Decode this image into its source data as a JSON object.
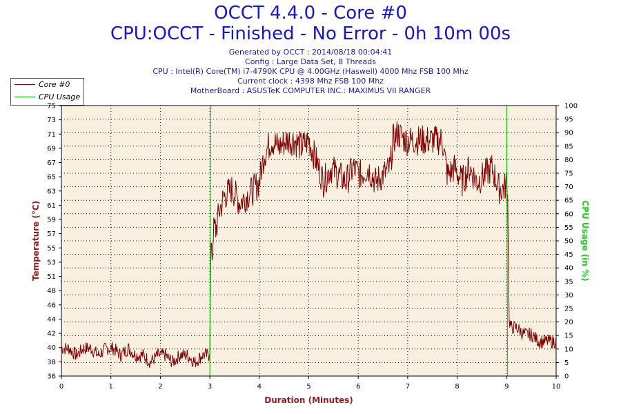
{
  "header": {
    "title": "OCCT 4.4.0 - Core #0",
    "subtitle": "CPU:OCCT - Finished - No Error - 0h 10m 00s",
    "info_lines": [
      "Generated by OCCT : 2014/08/18 00:04:41",
      "Config : Large Data Set, 8 Threads",
      "CPU : Intel(R) Core(TM) i7-4790K CPU @ 4.00GHz (Haswell) 4000 Mhz FSB 100 Mhz",
      "Current clock : 4398 Mhz FSB 100 Mhz",
      "MotherBoard : ASUSTeK COMPUTER INC.: MAXIMUS VII RANGER"
    ]
  },
  "legend": {
    "items": [
      {
        "label": "Core #0",
        "color": "#800000"
      },
      {
        "label": "CPU Usage",
        "color": "#00cc00"
      }
    ]
  },
  "colors": {
    "plot_bg": "#faf0e2",
    "temp_line": "#800000",
    "usage_line": "#00cc00",
    "grid": "#000000",
    "axis_left_label": "#9b1c1c",
    "axis_right_label": "#22cc22",
    "axis_x_label": "#9b1c1c"
  },
  "chart_data": {
    "type": "line",
    "xlabel": "Duration (Minutes)",
    "ylabel": "Temperature (°C)",
    "y2label": "CPU Usage (in %)",
    "xlim": [
      0,
      10
    ],
    "ylim": [
      36,
      75
    ],
    "y2lim": [
      0,
      100
    ],
    "x_ticks": [
      0,
      1,
      2,
      3,
      4,
      5,
      6,
      7,
      8,
      9,
      10
    ],
    "y_ticks": [
      36,
      38,
      40,
      42,
      44,
      46,
      48,
      51,
      53,
      55,
      57,
      59,
      61,
      63,
      65,
      67,
      69,
      71,
      73,
      75
    ],
    "y2_ticks": [
      0,
      5,
      10,
      15,
      20,
      25,
      30,
      35,
      40,
      45,
      50,
      55,
      60,
      65,
      70,
      75,
      80,
      85,
      90,
      95,
      100
    ],
    "grid": true,
    "legend_position": "top-left",
    "series": [
      {
        "name": "Core #0",
        "axis": "left",
        "x": [
          0,
          0.15,
          0.3,
          0.45,
          0.6,
          0.75,
          0.9,
          1.05,
          1.2,
          1.35,
          1.5,
          1.65,
          1.8,
          1.95,
          2.1,
          2.25,
          2.4,
          2.55,
          2.7,
          2.85,
          2.98,
          3.0,
          3.02,
          3.05,
          3.08,
          3.12,
          3.2,
          3.3,
          3.45,
          3.6,
          3.75,
          3.9,
          4.0,
          4.1,
          4.25,
          4.4,
          4.55,
          4.7,
          4.85,
          5.0,
          5.15,
          5.3,
          5.45,
          5.6,
          5.75,
          5.9,
          6.05,
          6.2,
          6.35,
          6.5,
          6.65,
          6.7,
          6.8,
          6.95,
          7.1,
          7.25,
          7.4,
          7.55,
          7.7,
          7.8,
          7.95,
          8.1,
          8.25,
          8.4,
          8.55,
          8.7,
          8.85,
          8.95,
          9.0,
          9.02,
          9.05,
          9.1,
          9.2,
          9.35,
          9.5,
          9.65,
          9.8,
          9.95,
          10.0
        ],
        "values": [
          40,
          40,
          39,
          40,
          40,
          39,
          40,
          40,
          39,
          40,
          39,
          39,
          38,
          39,
          39,
          38,
          39,
          39,
          38,
          39,
          39,
          40,
          55,
          53,
          58,
          57,
          60,
          62,
          63,
          61,
          62,
          63,
          64,
          68,
          70,
          69,
          70,
          70,
          69,
          70,
          67,
          64,
          66,
          65,
          64,
          66,
          65,
          66,
          64,
          65,
          66,
          70,
          71,
          70,
          70,
          70,
          70,
          70,
          70,
          65,
          66,
          64,
          66,
          64,
          65,
          66,
          63,
          63,
          64,
          62,
          44,
          43,
          43,
          42,
          42,
          41,
          41,
          41,
          41
        ],
        "color": "#800000"
      },
      {
        "name": "CPU Usage",
        "axis": "right",
        "x": [
          0,
          3.0,
          3.02,
          9.0,
          9.02,
          10
        ],
        "values": [
          0,
          0,
          100,
          100,
          0,
          0
        ],
        "color": "#00cc00"
      }
    ]
  }
}
